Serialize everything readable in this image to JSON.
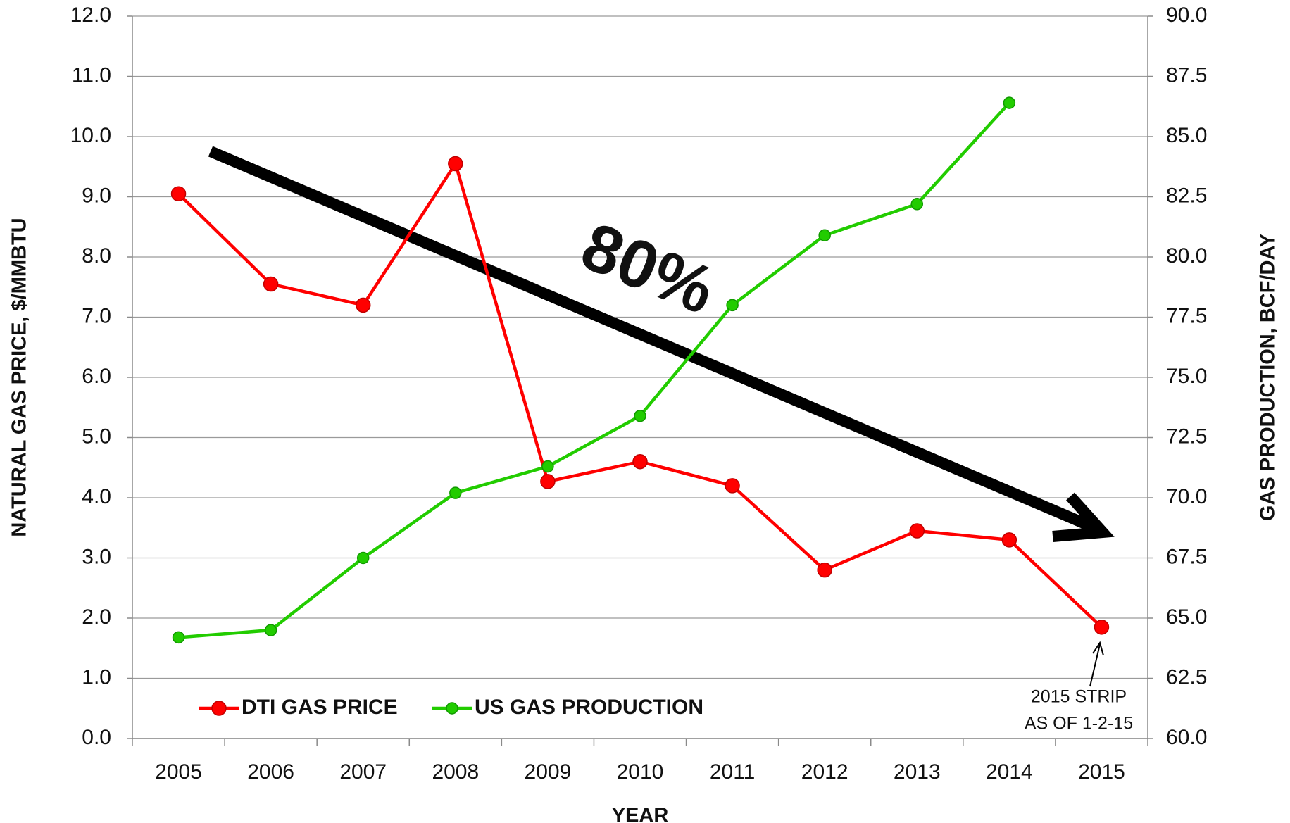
{
  "chart_data": {
    "type": "line",
    "y_label": "NATURAL GAS PRICE, $/MMBTU",
    "y2_label": "GAS PRODUCTION, BCF/DAY",
    "x_label": "YEAR",
    "categories": [
      "2005",
      "2006",
      "2007",
      "2008",
      "2009",
      "2010",
      "2011",
      "2012",
      "2013",
      "2014",
      "2015"
    ],
    "series": [
      {
        "name": "DTI GAS PRICE",
        "color": "#ff0000",
        "values": [
          9.05,
          7.55,
          7.2,
          9.55,
          4.27,
          4.6,
          4.2,
          2.8,
          3.45,
          3.3,
          1.85
        ]
      },
      {
        "name": "US GAS PRODUCTION",
        "color": "#22cc00",
        "axis": "y2",
        "values": [
          64.2,
          64.5,
          67.5,
          70.2,
          71.3,
          73.4,
          78.0,
          80.9,
          82.2,
          86.4,
          null
        ]
      }
    ],
    "ylim": [
      0,
      12
    ],
    "yticks": [
      {
        "value": 0,
        "label": "0.0"
      },
      {
        "value": 1,
        "label": "1.0"
      },
      {
        "value": 2,
        "label": "2.0"
      },
      {
        "value": 3,
        "label": "3.0"
      },
      {
        "value": 4,
        "label": "4.0"
      },
      {
        "value": 5,
        "label": "5.0"
      },
      {
        "value": 6,
        "label": "6.0"
      },
      {
        "value": 7,
        "label": "7.0"
      },
      {
        "value": 8,
        "label": "8.0"
      },
      {
        "value": 9,
        "label": "9.0"
      },
      {
        "value": 10,
        "label": "10.0"
      },
      {
        "value": 11,
        "label": "11.0"
      },
      {
        "value": 12,
        "label": "12.0"
      }
    ],
    "y2lim": [
      60,
      90
    ],
    "y2ticks": [
      {
        "value": 60,
        "label": "60.0"
      },
      62.5,
      {
        "value": 65,
        "label": "65.0"
      },
      67.5,
      {
        "value": 70,
        "label": "70.0"
      },
      72.5,
      {
        "value": 75,
        "label": "75.0"
      },
      77.5,
      {
        "value": 80,
        "label": "80.0"
      },
      82.5,
      {
        "value": 85,
        "label": "85.0"
      },
      87.5,
      {
        "value": 90,
        "label": "90.0"
      }
    ],
    "grid": true,
    "legend": "lower left",
    "annotations": [
      "80%",
      "2015 STRIP",
      "AS OF 1-2-15"
    ]
  }
}
